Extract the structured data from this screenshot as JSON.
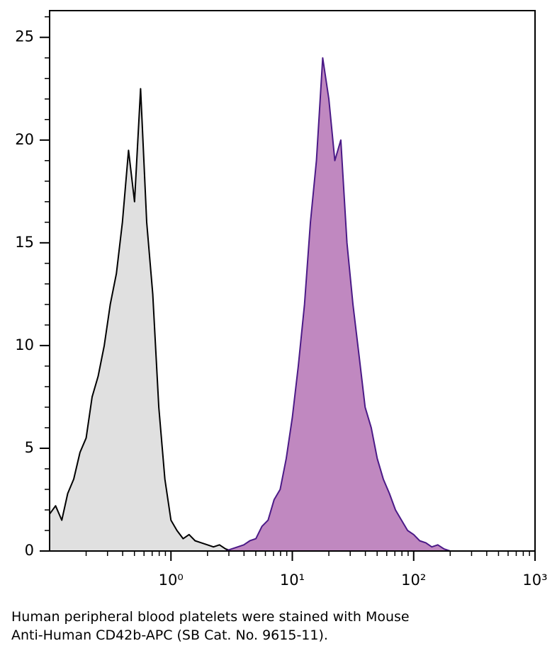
{
  "chart_data": {
    "type": "area",
    "xscale": "log",
    "xlim": [
      0.1,
      1000
    ],
    "ylim": [
      0,
      26.3
    ],
    "xticks": [
      {
        "value": 1,
        "label": "10⁰"
      },
      {
        "value": 10,
        "label": "10¹"
      },
      {
        "value": 100,
        "label": "10²"
      },
      {
        "value": 1000,
        "label": "10³"
      }
    ],
    "xminorticks": [
      0.2,
      0.3,
      0.4,
      0.5,
      0.6,
      0.7,
      0.8,
      0.9,
      2,
      3,
      4,
      5,
      6,
      7,
      8,
      9,
      20,
      30,
      40,
      50,
      60,
      70,
      80,
      90,
      200,
      300,
      400,
      500,
      600,
      700,
      800,
      900
    ],
    "yticks": [
      0,
      5,
      10,
      15,
      20,
      25
    ],
    "yminorticks": [
      1,
      2,
      3,
      4,
      6,
      7,
      8,
      9,
      11,
      12,
      13,
      14,
      16,
      17,
      18,
      19,
      21,
      22,
      23,
      24,
      26
    ],
    "x": [
      0.1,
      0.112,
      0.126,
      0.141,
      0.158,
      0.178,
      0.2,
      0.224,
      0.251,
      0.282,
      0.316,
      0.355,
      0.398,
      0.447,
      0.501,
      0.562,
      0.631,
      0.708,
      0.794,
      0.891,
      1,
      1.12,
      1.26,
      1.41,
      1.58,
      1.78,
      2,
      2.24,
      2.51,
      2.82,
      3.16,
      3.55,
      3.98,
      4.47,
      5.01,
      5.62,
      6.31,
      7.08,
      7.94,
      8.91,
      10,
      11.2,
      12.6,
      14.1,
      15.8,
      17.8,
      20,
      22.4,
      25.1,
      28.2,
      31.6,
      35.5,
      39.8,
      44.7,
      50.1,
      56.2,
      63.1,
      70.8,
      79.4,
      89.1,
      100,
      112,
      126,
      141,
      158,
      178,
      200
    ],
    "series": [
      {
        "color": "#000000",
        "fill": "#e0e0e0",
        "values": [
          1.8,
          2.2,
          1.5,
          2.8,
          3.5,
          4.8,
          5.5,
          7.5,
          8.5,
          10,
          12,
          13.5,
          16,
          19.5,
          17,
          22.5,
          16,
          12.5,
          7,
          3.5,
          1.5,
          1,
          0.6,
          0.8,
          0.5,
          0.4,
          0.3,
          0.2,
          0.3,
          0.1,
          0,
          0,
          0,
          0,
          0,
          0,
          0,
          0,
          0,
          0,
          0,
          0,
          0,
          0,
          0,
          0,
          0,
          0,
          0,
          0,
          0,
          0,
          0,
          0,
          0,
          0,
          0,
          0,
          0,
          0,
          0,
          0,
          0,
          0,
          0,
          0,
          0
        ]
      },
      {
        "color": "#4b1a87",
        "fill": "#c088c0",
        "values": [
          0,
          0,
          0,
          0,
          0,
          0,
          0,
          0,
          0,
          0,
          0,
          0,
          0,
          0,
          0,
          0,
          0,
          0,
          0,
          0,
          0,
          0,
          0,
          0,
          0,
          0,
          0,
          0,
          0,
          0,
          0.1,
          0.2,
          0.3,
          0.5,
          0.6,
          1.2,
          1.5,
          2.5,
          3,
          4.5,
          6.5,
          9,
          12,
          16,
          19,
          24,
          22,
          19,
          20,
          15,
          12,
          9.5,
          7,
          6,
          4.5,
          3.5,
          2.8,
          2,
          1.5,
          1,
          0.8,
          0.5,
          0.4,
          0.2,
          0.3,
          0.1,
          0
        ]
      }
    ],
    "caption": [
      "Human peripheral blood platelets were stained with Mouse",
      "Anti-Human CD42b-APC (SB Cat. No. 9615-11)."
    ]
  }
}
